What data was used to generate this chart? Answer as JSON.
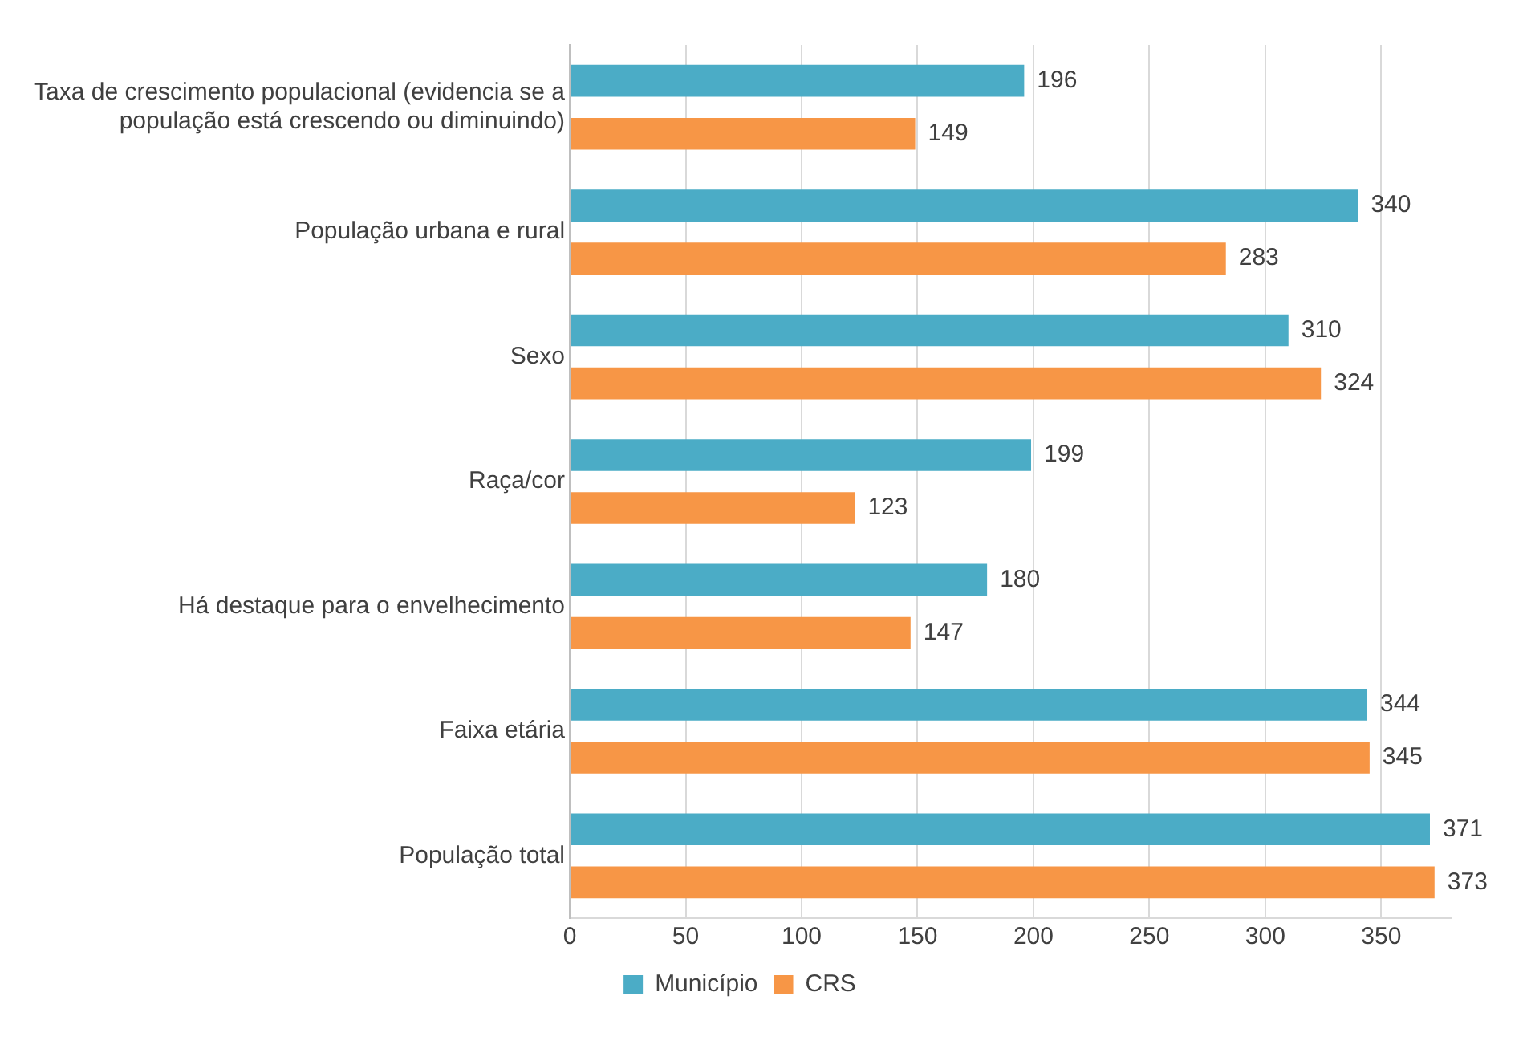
{
  "chart_data": {
    "type": "bar",
    "orientation": "horizontal",
    "categories": [
      "Taxa de crescimento populacional (evidencia se a população está crescendo ou diminuindo)",
      "População urbana e rural",
      "Sexo",
      "Raça/cor",
      "Há destaque para o envelhecimento",
      "Faixa etária",
      "População total"
    ],
    "series": [
      {
        "name": "Município",
        "color": "#4bacc6",
        "values": [
          196,
          340,
          310,
          199,
          180,
          344,
          371
        ]
      },
      {
        "name": "CRS",
        "color": "#f79646",
        "values": [
          149,
          283,
          324,
          123,
          147,
          345,
          373
        ]
      }
    ],
    "xlim": [
      0,
      380
    ],
    "xticks": [
      0,
      50,
      100,
      150,
      200,
      250,
      300,
      350
    ],
    "grid": "x",
    "legend": "bottom",
    "data_labels": true
  }
}
